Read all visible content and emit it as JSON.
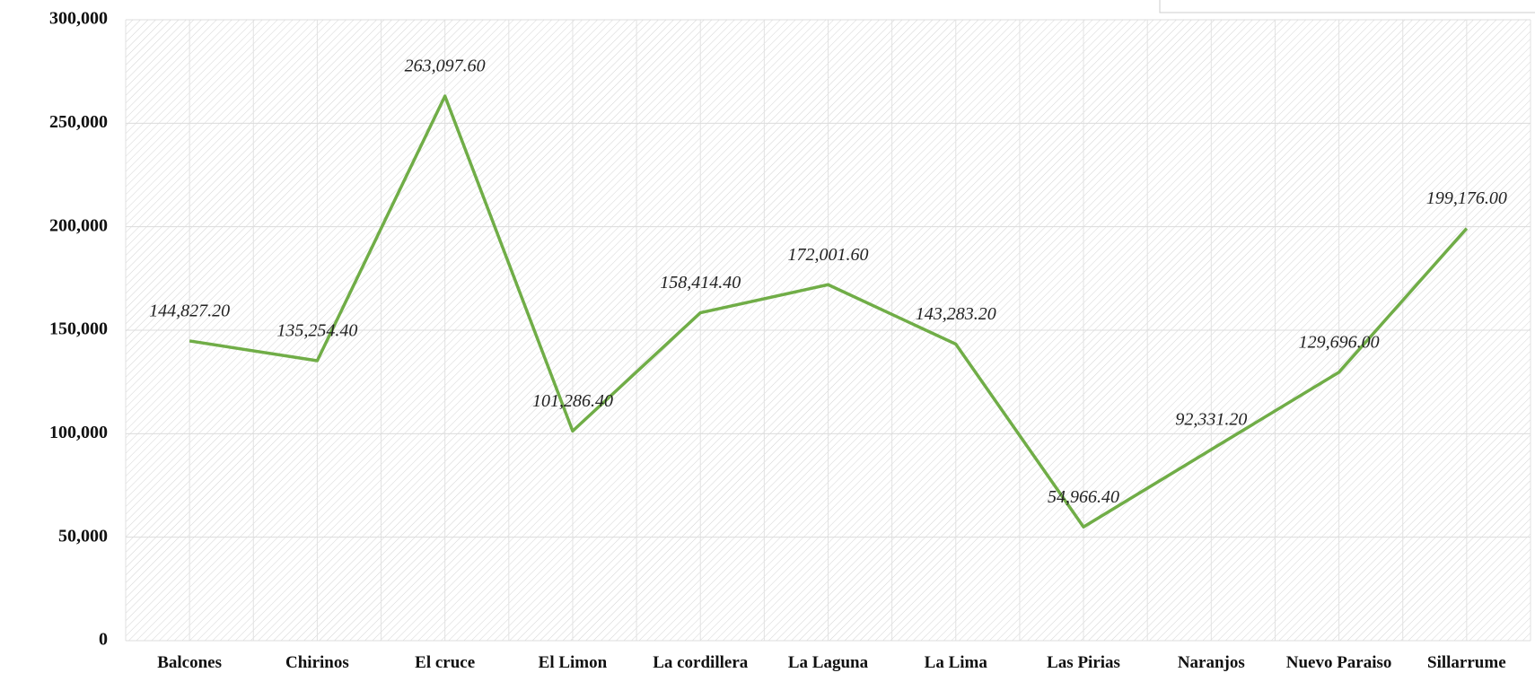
{
  "chart_data": {
    "type": "line",
    "categories": [
      "Balcones",
      "Chirinos",
      "El cruce",
      "El Limon",
      "La cordillera",
      "La Laguna",
      "La Lima",
      "Las Pirias",
      "Naranjos",
      "Nuevo Paraiso",
      "Sillarrume"
    ],
    "series": [
      {
        "color": "#70ad47",
        "values": [
          144827.2,
          135254.4,
          263097.6,
          101286.4,
          158414.4,
          172001.6,
          143283.2,
          54966.4,
          92331.2,
          129696.0,
          199176.0
        ],
        "value_labels": [
          "144,827.20",
          "135,254.40",
          "263,097.60",
          "101,286.40",
          "158,414.40",
          "172,001.60",
          "143,283.20",
          "54,966.40",
          "92,331.20",
          "129,696.00",
          "199,176.00"
        ]
      }
    ],
    "ylim": [
      0,
      300000
    ],
    "yticks": [
      0,
      {
        "value": 50000,
        "label": "50,000"
      },
      {
        "value": 100000,
        "label": "100,000"
      },
      {
        "value": 150000,
        "label": "150,000"
      },
      {
        "value": 200000,
        "label": "200,000"
      },
      {
        "value": 250000,
        "label": "250,000"
      },
      {
        "value": 300000,
        "label": "300,000"
      }
    ],
    "grid": true
  }
}
